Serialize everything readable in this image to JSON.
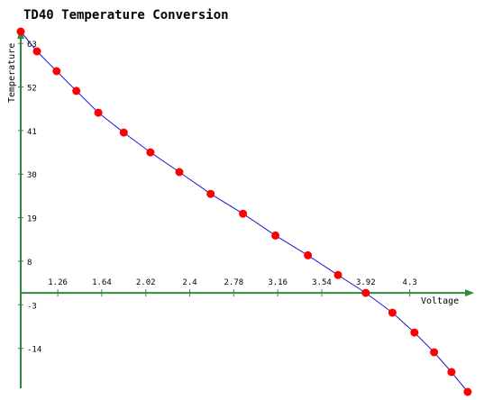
{
  "colors": {
    "axis": "#2e8b3e",
    "line": "#1a1acc",
    "point": "#ff0000",
    "background": "#ffffff"
  },
  "chart_data": {
    "type": "line",
    "title": "TD40 Temperature Conversion",
    "xlabel": "Voltage",
    "ylabel": "Temperature",
    "xlim": [
      0.94,
      4.84
    ],
    "ylim": [
      -25,
      66
    ],
    "grid": false,
    "x_ticks": [
      1.26,
      1.64,
      2.02,
      2.4,
      2.78,
      3.16,
      3.54,
      3.92,
      4.3
    ],
    "x_tick_labels": [
      "1.26",
      "1.64",
      "2.02",
      "2.4",
      "2.78",
      "3.16",
      "3.54",
      "3.92",
      "4.3"
    ],
    "y_ticks": [
      63,
      52,
      41,
      30,
      19,
      8,
      -3,
      -14
    ],
    "y_tick_labels": [
      "63",
      "52",
      "41",
      "30",
      "19",
      "8",
      "-3",
      "-14"
    ],
    "series": [
      {
        "x": [
          0.94,
          1.08,
          1.25,
          1.42,
          1.61,
          1.83,
          2.06,
          2.31,
          2.58,
          2.86,
          3.14,
          3.42,
          3.68,
          3.92,
          4.15,
          4.34,
          4.51,
          4.66,
          4.8
        ],
        "y": [
          66,
          61,
          56,
          51,
          45.5,
          40.5,
          35.5,
          30.5,
          25,
          20,
          14.5,
          9.5,
          4.5,
          0,
          -5,
          -10,
          -15,
          -20,
          -25
        ]
      }
    ]
  }
}
